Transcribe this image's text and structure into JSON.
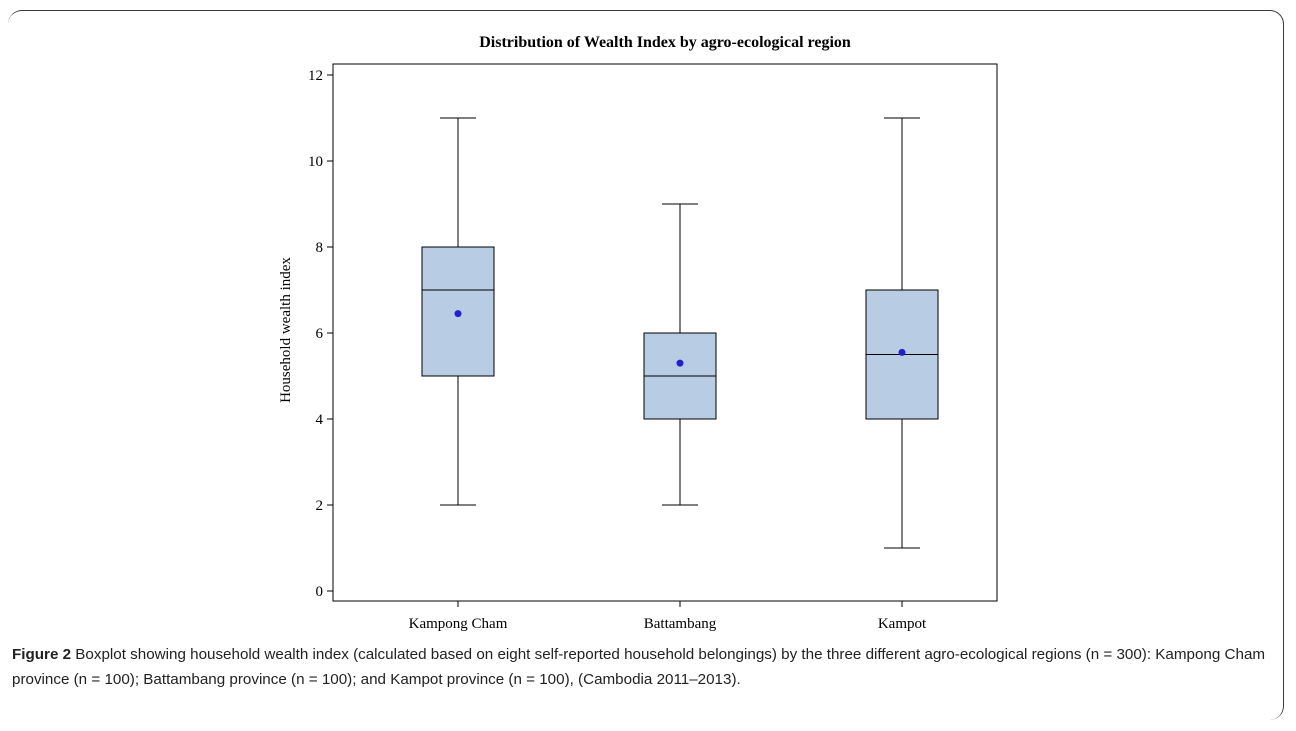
{
  "caption": {
    "label": "Figure 2",
    "text": " Boxplot showing household wealth index (calculated based on eight self-reported household belongings) by the three different agro-ecological regions (n = 300): Kampong Cham province (n = 100); Battambang province (n = 100); and Kampot province (n = 100), (Cambodia 2011–2013)."
  },
  "chart_data": {
    "type": "box",
    "title": "Distribution of Wealth Index by agro-ecological region",
    "xlabel": "",
    "ylabel": "Household wealth index",
    "ylim": [
      0,
      12
    ],
    "yticks": [
      0,
      2,
      4,
      6,
      8,
      10,
      12
    ],
    "grid": false,
    "categories": [
      "Kampong Cham",
      "Battambang",
      "Kampot"
    ],
    "boxes": [
      {
        "category": "Kampong Cham",
        "min": 2,
        "q1": 5,
        "median": 7,
        "q3": 8,
        "max": 11,
        "mean": 6.45
      },
      {
        "category": "Battambang",
        "min": 2,
        "q1": 4,
        "median": 5,
        "q3": 6,
        "max": 9,
        "mean": 5.3
      },
      {
        "category": "Kampot",
        "min": 1,
        "q1": 4,
        "median": 5.5,
        "q3": 7,
        "max": 11,
        "mean": 5.55
      }
    ],
    "colors": {
      "box_fill": "#b8cce4",
      "box_stroke": "#000000",
      "mean_marker": "#2222cc"
    }
  }
}
